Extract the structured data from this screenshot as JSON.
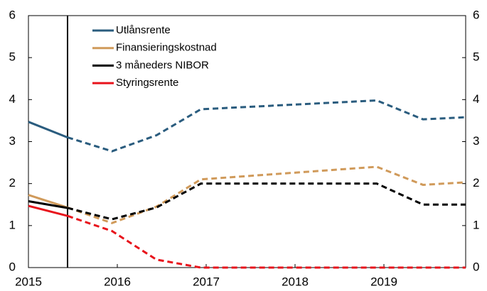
{
  "chart_data": {
    "type": "line",
    "x": [
      2015,
      2015.44,
      2015.94,
      2016.44,
      2016.94,
      2018.92,
      2019.44,
      2019.92
    ],
    "series": [
      {
        "name": "Utlånsrente",
        "color": "#2a5c7e",
        "values": [
          3.47,
          3.1,
          2.77,
          3.15,
          3.77,
          3.98,
          3.53,
          3.58
        ]
      },
      {
        "name": "Finansieringskostnad",
        "color": "#d09a5a",
        "values": [
          1.73,
          1.43,
          1.06,
          1.45,
          2.1,
          2.4,
          1.97,
          2.03
        ]
      },
      {
        "name": "3 måneders NIBOR",
        "color": "#000000",
        "values": [
          1.58,
          1.42,
          1.15,
          1.43,
          2.0,
          2.0,
          1.5,
          1.5
        ]
      },
      {
        "name": "Styringsrente",
        "color": "#e8141c",
        "values": [
          1.47,
          1.23,
          0.87,
          0.19,
          0,
          0,
          0,
          0
        ]
      }
    ],
    "xlim": [
      2015,
      2019.92
    ],
    "xticks": [
      2015,
      2016,
      2017,
      2018,
      2019
    ],
    "ylim": [
      0,
      6
    ],
    "yticks": [
      0,
      1,
      2,
      3,
      4,
      5,
      6
    ],
    "y2lim": [
      0,
      6
    ],
    "y2ticks": [
      0,
      1,
      2,
      3,
      4,
      5,
      6
    ],
    "vertical_line_x": 2015.44,
    "legend": "upper left",
    "grid": false
  }
}
